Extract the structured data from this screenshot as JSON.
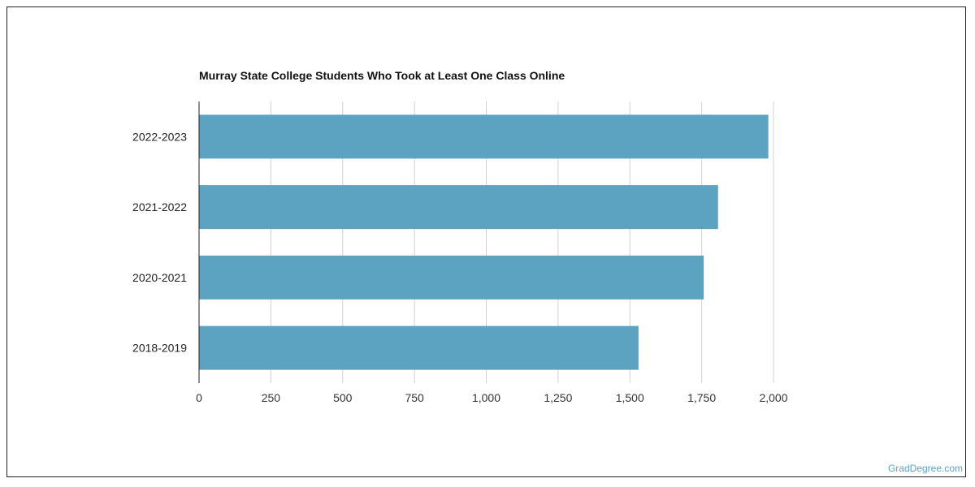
{
  "chart_data": {
    "type": "bar",
    "orientation": "horizontal",
    "title": "Murray State College Students Who Took at Least One Class Online",
    "xlabel": "",
    "ylabel": "",
    "categories": [
      "2022-2023",
      "2021-2022",
      "2020-2021",
      "2018-2019"
    ],
    "values": [
      1982,
      1807,
      1757,
      1530
    ],
    "xlim": [
      0,
      2000
    ],
    "xticks": [
      0,
      250,
      500,
      750,
      1000,
      1250,
      1500,
      1750,
      2000
    ],
    "xtick_labels": [
      "0",
      "250",
      "500",
      "750",
      "1,000",
      "1,250",
      "1,500",
      "1,750",
      "2,000"
    ],
    "bar_color": "#5ba3c0",
    "grid": "vertical",
    "legend": "none"
  },
  "watermark": "GradDegree.com"
}
